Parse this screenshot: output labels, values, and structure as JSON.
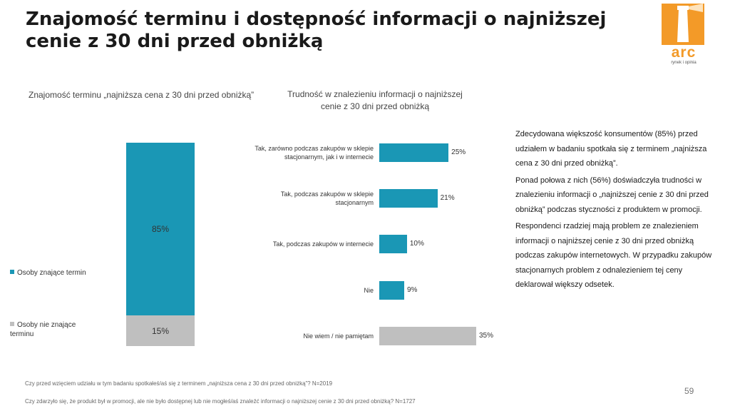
{
  "title": "Znajomość terminu i dostępność informacji o najniższej cenie z 30 dni przed obniżką",
  "logo": {
    "name": "arc",
    "tagline": "rynek i opinia"
  },
  "colors": {
    "primary": "#1a97b5",
    "secondary": "#bfbfbf",
    "accent": "#f39a28"
  },
  "chart_data": [
    {
      "type": "bar",
      "stacked": true,
      "title": "Znajomość terminu „najniższa cena z 30 dni przed obniżką”",
      "categories": [
        ""
      ],
      "series": [
        {
          "name": "Osoby znające termin",
          "values": [
            85
          ],
          "label": "85%",
          "color": "#1a97b5"
        },
        {
          "name": "Osoby nie znające terminu",
          "values": [
            15
          ],
          "label": "15%",
          "color": "#bfbfbf"
        }
      ],
      "ylim": [
        0,
        100
      ],
      "legend": "left"
    },
    {
      "type": "bar",
      "orientation": "horizontal",
      "title": "Trudność w znalezieniu informacji o najniższej cenie z 30 dni przed obniżką",
      "categories": [
        "Tak, zarówno podczas zakupów w sklepie stacjonarnym, jak i w internecie",
        "Tak, podczas zakupów w sklepie stacjonarnym",
        "Tak, podczas zakupów w internecie",
        "Nie",
        "Nie wiem / nie pamiętam"
      ],
      "values": [
        25,
        21,
        10,
        9,
        35
      ],
      "labels": [
        "25%",
        "21%",
        "10%",
        "9%",
        "35%"
      ],
      "colors": [
        "#1a97b5",
        "#1a97b5",
        "#1a97b5",
        "#1a97b5",
        "#bfbfbf"
      ],
      "xlim": [
        0,
        35
      ]
    }
  ],
  "summary": [
    "Zdecydowana większość konsumentów (85%) przed udziałem w badaniu spotkała się  z terminem „najniższa cena z 30 dni przed obniżką”.",
    "Ponad połowa z nich (56%) doświadczyła trudności w znalezieniu informacji o „najniższej cenie z 30 dni przed obniżką” podczas styczności z produktem w promocji.",
    "Respondenci rzadziej mają problem ze znalezieniem informacji o najniższej cenie z 30 dni przed obniżką podczas zakupów internetowych. W przypadku zakupów stacjonarnych problem z odnalezieniem tej ceny deklarował większy odsetek."
  ],
  "footnotes": [
    "Czy przed wzięciem udziału w tym badaniu spotkałeś/aś się z terminem „najniższa cena z 30 dni przed obniżką”? N=2019",
    "Czy zdarzyło się, że produkt był w promocji, ale nie było dostępnej lub nie mogłeś/aś znaleźć informacji o najniższej cenie z 30 dni przed obniżką? N=1727"
  ],
  "page_number": "59"
}
